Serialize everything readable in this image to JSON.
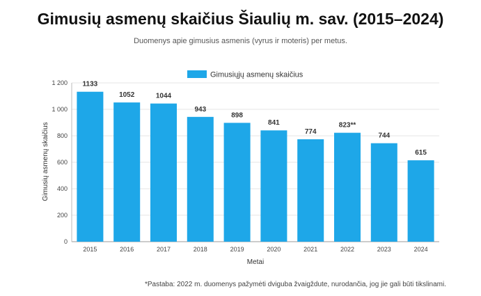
{
  "chart_data": {
    "type": "bar",
    "title": "Gimusių asmenų skaičius Šiaulių m. sav. (2015–2024)",
    "subtitle": "Duomenys apie gimusius asmenis (vyrus ir moteris) per metus.",
    "xlabel": "Metai",
    "ylabel": "Gimusių asmenų skaičius",
    "ylim": [
      0,
      1200
    ],
    "yticks": [
      0,
      200,
      400,
      600,
      800,
      1000,
      1200
    ],
    "ytick_labels": [
      "0",
      "200",
      "400",
      "600",
      "800",
      "1 000",
      "1 200"
    ],
    "categories": [
      "2015",
      "2016",
      "2017",
      "2018",
      "2019",
      "2020",
      "2021",
      "2022",
      "2023",
      "2024"
    ],
    "series": [
      {
        "name": "Gimusiųjų asmenų skaičius",
        "values": [
          1133,
          1052,
          1044,
          943,
          898,
          841,
          774,
          823,
          744,
          615
        ],
        "labels": [
          "1133",
          "1052",
          "1044",
          "943",
          "898",
          "841",
          "774",
          "823**",
          "744",
          "615"
        ],
        "color": "#1ea7e8"
      }
    ],
    "grid": true,
    "legend_position": "top-center",
    "note": "*Pastaba: 2022 m. duomenys pažymėti dviguba žvaigždute, nurodančia, jog jie gali būti tikslinami."
  }
}
